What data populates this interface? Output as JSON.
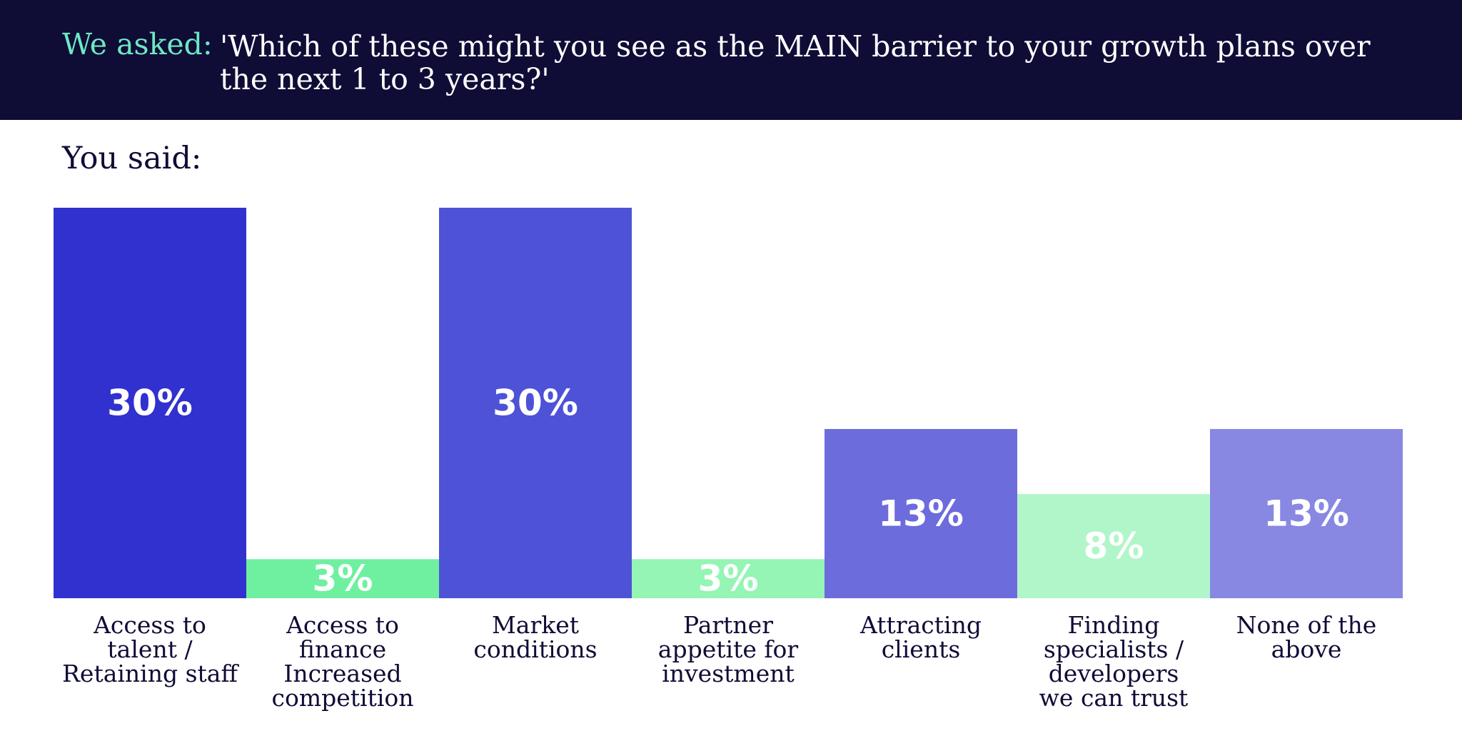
{
  "header": {
    "asked_label": "We asked:",
    "question": "'Which of these might you see as the MAIN barrier to your growth plans over the next 1 to 3 years?'"
  },
  "you_said_label": "You said:",
  "chart_data": {
    "type": "bar",
    "categories": [
      [
        "Access to",
        "talent /",
        "Retaining staff"
      ],
      [
        "Access to",
        "finance",
        "Increased",
        "competition"
      ],
      [
        "Market",
        "conditions"
      ],
      [
        "Partner",
        "appetite for",
        "investment"
      ],
      [
        "Attracting",
        "clients"
      ],
      [
        "Finding",
        "specialists /",
        "developers",
        "we can trust"
      ],
      [
        "None of the",
        "above"
      ]
    ],
    "values": [
      30,
      3,
      30,
      3,
      13,
      8,
      13
    ],
    "value_labels": [
      "30%",
      "3%",
      "30%",
      "3%",
      "13%",
      "8%",
      "13%"
    ],
    "colors": [
      "#3131cf",
      "#6ff0a0",
      "#4e52d7",
      "#94f5b4",
      "#6c6cdd",
      "#b1f6c9",
      "#8888e3"
    ],
    "ylim": [
      0,
      30
    ],
    "grid": false,
    "legend": "none"
  }
}
